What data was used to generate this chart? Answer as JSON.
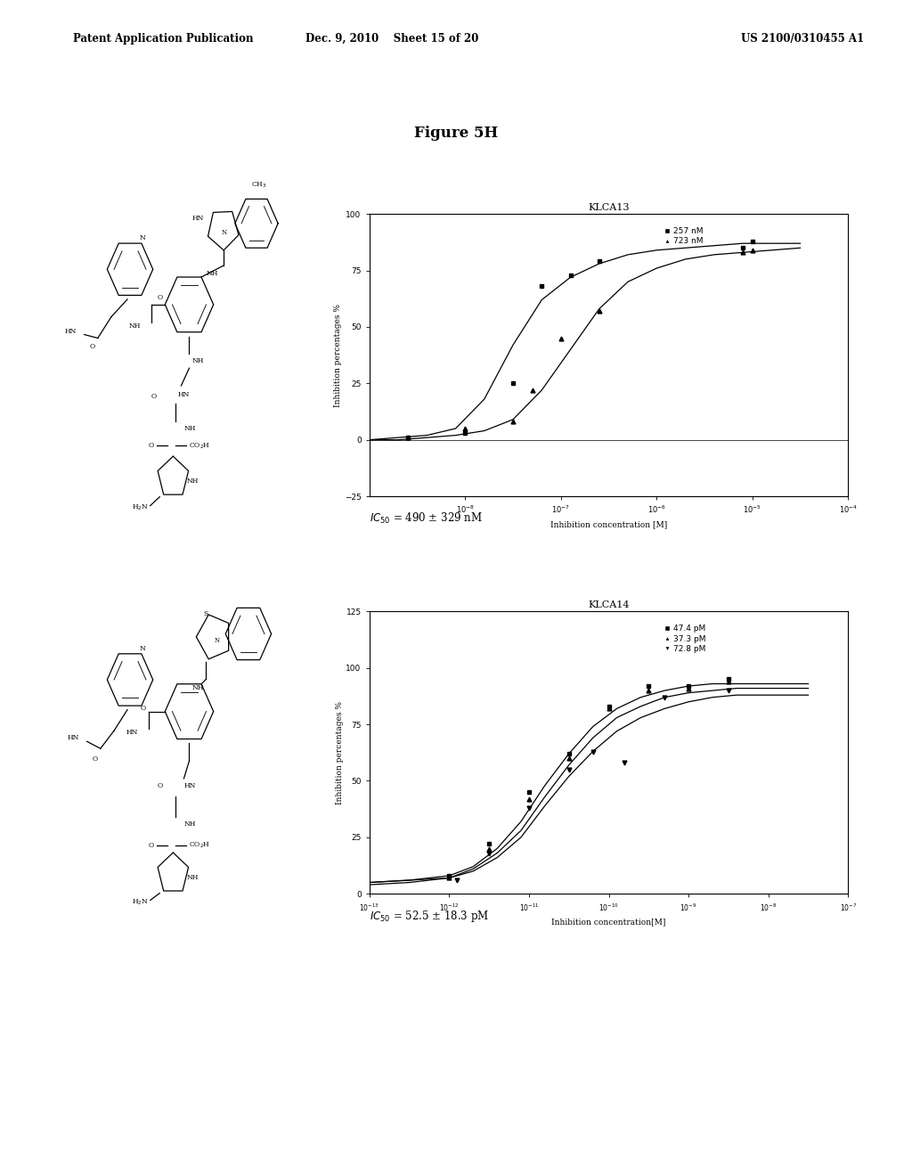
{
  "page_header_left": "Patent Application Publication",
  "page_header_mid": "Dec. 9, 2010   Sheet 15 of 20",
  "page_header_right": "US 2100/0310455 A1",
  "figure_title": "Figure 5H",
  "background_color": "#ffffff",
  "plot1": {
    "title": "KLCA13",
    "xlabel": "Inhibition concentration [M]",
    "ylabel": "Inhibition percentages %",
    "xlim_log": [
      -9,
      -4
    ],
    "xtick_exponents": [
      -8,
      -7,
      -6,
      -5,
      -4
    ],
    "ylim": [
      -25,
      100
    ],
    "yticks": [
      -25,
      0,
      25,
      50,
      75,
      100
    ],
    "legend": [
      "257 nM",
      "723 nM"
    ],
    "ic50_text": "IC50 = 490 ± 329 nM",
    "curve1_x": [
      -9.0,
      -8.7,
      -8.4,
      -8.1,
      -7.8,
      -7.5,
      -7.2,
      -6.9,
      -6.6,
      -6.3,
      -6.0,
      -5.7,
      -5.4,
      -5.1,
      -4.8,
      -4.5
    ],
    "curve1_y": [
      0,
      1,
      2,
      5,
      18,
      42,
      62,
      72,
      78,
      82,
      84,
      85,
      86,
      87,
      87,
      87
    ],
    "curve2_x": [
      -9.0,
      -8.7,
      -8.4,
      -8.1,
      -7.8,
      -7.5,
      -7.2,
      -6.9,
      -6.6,
      -6.3,
      -6.0,
      -5.7,
      -5.4,
      -5.1,
      -4.8,
      -4.5
    ],
    "curve2_y": [
      0,
      0,
      1,
      2,
      4,
      9,
      22,
      40,
      58,
      70,
      76,
      80,
      82,
      83,
      84,
      85
    ],
    "pts1_x": [
      -8.6,
      -8.0,
      -7.5,
      -7.2,
      -6.9,
      -6.6,
      -5.1,
      -5.0
    ],
    "pts1_y": [
      1,
      3,
      25,
      68,
      73,
      79,
      85,
      88
    ],
    "pts2_x": [
      -8.6,
      -8.0,
      -7.5,
      -7.3,
      -7.0,
      -6.6,
      -5.1,
      -5.0
    ],
    "pts2_y": [
      1,
      5,
      8,
      22,
      45,
      57,
      83,
      84
    ]
  },
  "plot2": {
    "title": "KLCA14",
    "xlabel": "Inhibition concentration[M]",
    "ylabel": "Inhibition percentages %",
    "xlim_log": [
      -13,
      -7
    ],
    "xtick_exponents": [
      -13,
      -12,
      -11,
      -10,
      -9,
      -8,
      -7
    ],
    "ylim": [
      0,
      125
    ],
    "yticks": [
      0,
      25,
      50,
      75,
      100,
      125
    ],
    "legend": [
      "47.4 pM",
      "37.3 pM",
      "72.8 pM"
    ],
    "ic50_text": "IC50 = 52.5 ± 18.3 pM",
    "curve1_x": [
      -13.0,
      -12.5,
      -12.0,
      -11.7,
      -11.4,
      -11.1,
      -10.8,
      -10.5,
      -10.2,
      -9.9,
      -9.6,
      -9.3,
      -9.0,
      -8.7,
      -8.4,
      -8.1,
      -7.8,
      -7.5
    ],
    "curve1_y": [
      5,
      6,
      8,
      12,
      20,
      32,
      48,
      62,
      74,
      82,
      87,
      90,
      92,
      93,
      93,
      93,
      93,
      93
    ],
    "curve2_x": [
      -13.0,
      -12.5,
      -12.0,
      -11.7,
      -11.4,
      -11.1,
      -10.8,
      -10.5,
      -10.2,
      -9.9,
      -9.6,
      -9.3,
      -9.0,
      -8.7,
      -8.4,
      -8.1,
      -7.8,
      -7.5
    ],
    "curve2_y": [
      5,
      6,
      7,
      11,
      18,
      28,
      43,
      57,
      69,
      78,
      83,
      87,
      89,
      90,
      91,
      91,
      91,
      91
    ],
    "curve3_x": [
      -13.0,
      -12.5,
      -12.0,
      -11.7,
      -11.4,
      -11.1,
      -10.8,
      -10.5,
      -10.2,
      -9.9,
      -9.6,
      -9.3,
      -9.0,
      -8.7,
      -8.4,
      -8.1,
      -7.8,
      -7.5
    ],
    "curve3_y": [
      4,
      5,
      7,
      10,
      16,
      25,
      39,
      52,
      63,
      72,
      78,
      82,
      85,
      87,
      88,
      88,
      88,
      88
    ],
    "pts1_x": [
      -12.0,
      -11.5,
      -11.0,
      -10.5,
      -10.0,
      -9.5,
      -9.0,
      -8.5
    ],
    "pts1_y": [
      8,
      22,
      45,
      62,
      83,
      92,
      92,
      95
    ],
    "pts2_x": [
      -12.0,
      -11.5,
      -11.0,
      -10.5,
      -10.0,
      -9.5,
      -9.0,
      -8.5
    ],
    "pts2_y": [
      7,
      20,
      42,
      60,
      82,
      90,
      91,
      94
    ],
    "pts3_x": [
      -11.9,
      -11.5,
      -11.0,
      -10.5,
      -10.2,
      -9.8,
      -9.3,
      -8.5
    ],
    "pts3_y": [
      6,
      18,
      38,
      55,
      63,
      58,
      87,
      90
    ]
  }
}
